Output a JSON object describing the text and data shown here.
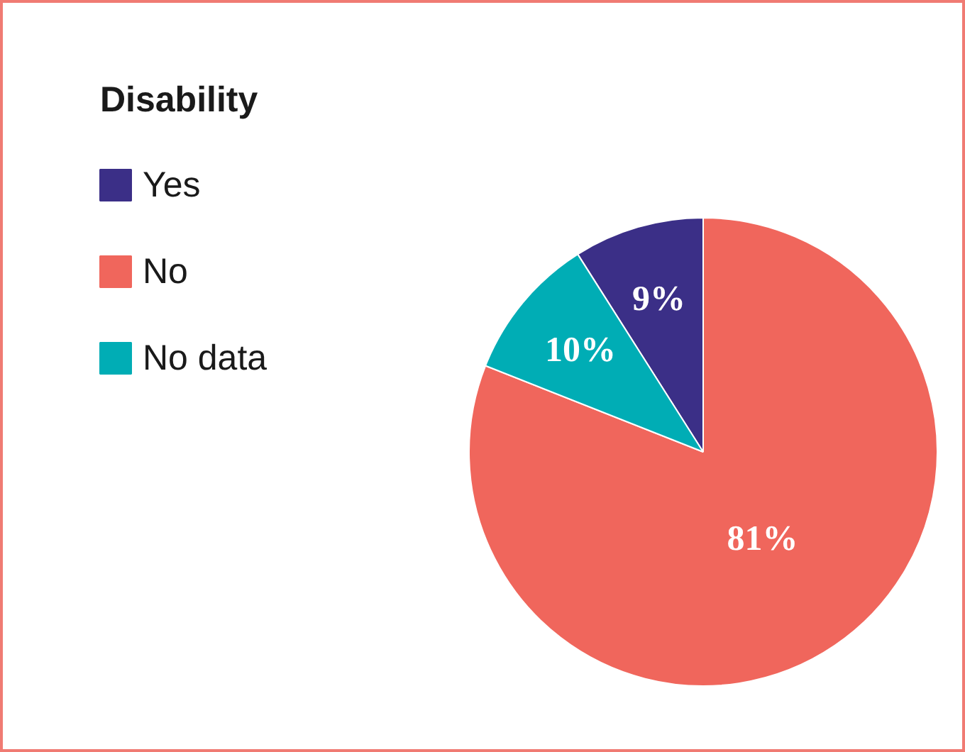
{
  "chart_data": {
    "type": "pie",
    "legend_title": "Disability",
    "categories": [
      "Yes",
      "No",
      "No data"
    ],
    "values": [
      9,
      81,
      10
    ],
    "colors": [
      "#3b2f87",
      "#f0665c",
      "#00adb5"
    ],
    "value_labels": [
      "9%",
      "81%",
      "10%"
    ],
    "legend": "top left"
  }
}
